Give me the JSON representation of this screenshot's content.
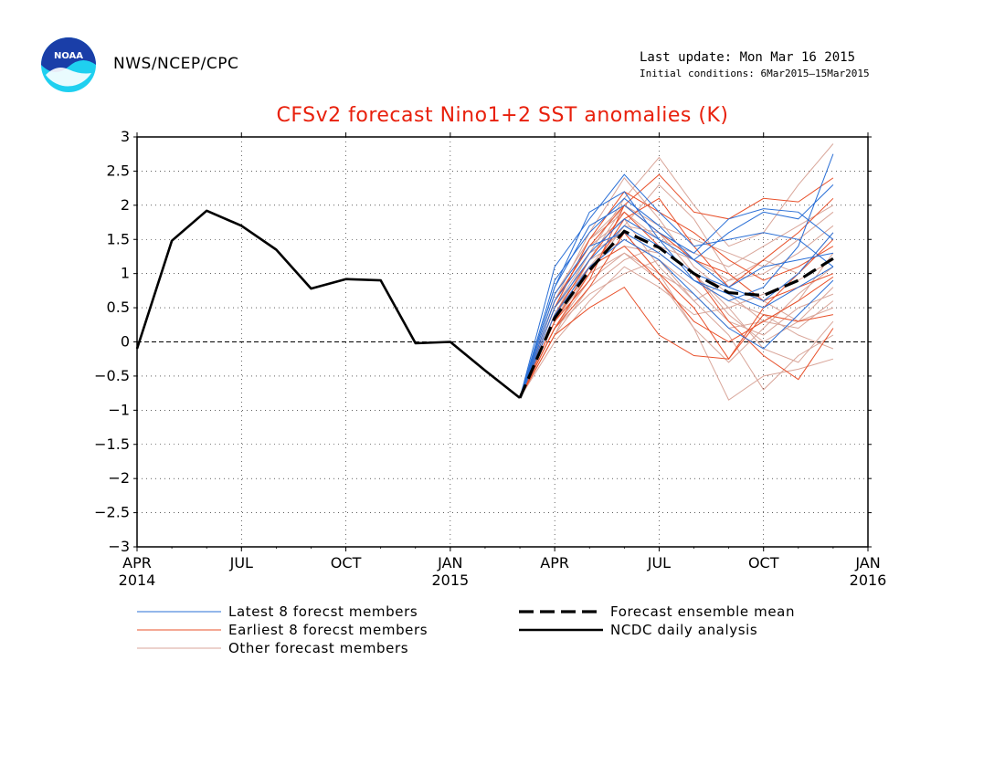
{
  "header": {
    "org": "NWS/NCEP/CPC",
    "logo_text": "NOAA",
    "last_update": "Last update: Mon Mar 16 2015",
    "initial_conditions": "Initial conditions: 6Mar2015–15Mar2015"
  },
  "colors": {
    "title": "#e8200c",
    "latest": "#2a6fd6",
    "earliest": "#e8502a",
    "other": "#d9a69a",
    "analysis": "#000000",
    "ensemble_mean": "#000000"
  },
  "chart_data": {
    "type": "line",
    "title": "CFSv2 forecast Nino1+2 SST anomalies (K)",
    "ylim": [
      -3,
      3
    ],
    "yticks": [
      3,
      2.5,
      2,
      1.5,
      1,
      0.5,
      0,
      -0.5,
      -1,
      -1.5,
      -2,
      -2.5,
      -3
    ],
    "ytick_labels": [
      "3",
      "2.5",
      "2",
      "1.5",
      "1",
      "0.5",
      "0",
      "−0.5",
      "−1",
      "−1.5",
      "−2",
      "−2.5",
      "−3"
    ],
    "xlim": [
      "2014-04",
      "2016-01"
    ],
    "xticks": [
      {
        "x": "2014-04",
        "label": "APR",
        "year": "2014"
      },
      {
        "x": "2014-07",
        "label": "JUL",
        "year": ""
      },
      {
        "x": "2014-10",
        "label": "OCT",
        "year": ""
      },
      {
        "x": "2015-01",
        "label": "JAN",
        "year": "2015"
      },
      {
        "x": "2015-04",
        "label": "APR",
        "year": ""
      },
      {
        "x": "2015-07",
        "label": "JUL",
        "year": ""
      },
      {
        "x": "2015-10",
        "label": "OCT",
        "year": ""
      },
      {
        "x": "2016-01",
        "label": "JAN",
        "year": "2016"
      }
    ],
    "grid": true,
    "zero_line": true,
    "legend": [
      {
        "label": "Latest 8 forecst members",
        "style": "latest"
      },
      {
        "label": "Earliest 8 forecst members",
        "style": "earliest"
      },
      {
        "label": "Other forecast members",
        "style": "other"
      },
      {
        "label": "Forecast ensemble mean",
        "style": "mean"
      },
      {
        "label": "NCDC daily analysis",
        "style": "analysis"
      }
    ],
    "analysis": {
      "x": [
        "2014-04",
        "2014-05",
        "2014-06",
        "2014-07",
        "2014-08",
        "2014-09",
        "2014-10",
        "2014-11",
        "2014-12",
        "2015-01",
        "2015-02",
        "2015-03"
      ],
      "y": [
        -0.1,
        1.48,
        1.92,
        1.7,
        1.35,
        0.78,
        0.92,
        0.9,
        -0.02,
        0.0,
        -0.42,
        -0.82
      ]
    },
    "ensemble_mean": {
      "x": [
        "2015-03",
        "2015-04",
        "2015-05",
        "2015-06",
        "2015-07",
        "2015-08",
        "2015-09",
        "2015-10",
        "2015-11",
        "2015-12"
      ],
      "y": [
        -0.82,
        0.35,
        1.05,
        1.62,
        1.38,
        1.0,
        0.72,
        0.68,
        0.9,
        1.22
      ]
    },
    "forecast_x": [
      "2015-03",
      "2015-04",
      "2015-05",
      "2015-06",
      "2015-07",
      "2015-08",
      "2015-09",
      "2015-10",
      "2015-11",
      "2015-12"
    ],
    "latest_members": [
      [
        -0.82,
        1.1,
        1.8,
        2.45,
        1.9,
        1.4,
        1.5,
        1.6,
        1.5,
        1.1
      ],
      [
        -0.82,
        0.9,
        1.6,
        2.1,
        1.7,
        1.2,
        0.8,
        1.1,
        1.2,
        1.3
      ],
      [
        -0.82,
        0.6,
        1.3,
        1.8,
        1.5,
        0.9,
        0.7,
        0.5,
        0.8,
        1.1
      ],
      [
        -0.82,
        0.8,
        1.7,
        2.0,
        1.6,
        1.3,
        1.8,
        1.95,
        1.9,
        1.5
      ],
      [
        -0.82,
        0.4,
        1.1,
        1.5,
        1.2,
        0.7,
        0.2,
        -0.1,
        0.4,
        0.9
      ],
      [
        -0.82,
        0.7,
        1.4,
        1.6,
        1.3,
        0.9,
        0.6,
        0.8,
        1.4,
        2.75
      ],
      [
        -0.82,
        0.5,
        1.2,
        1.7,
        1.4,
        1.0,
        0.8,
        0.6,
        1.0,
        1.6
      ],
      [
        -0.82,
        0.8,
        1.9,
        2.2,
        1.5,
        1.2,
        1.6,
        1.9,
        1.8,
        2.3
      ]
    ],
    "earliest_members": [
      [
        -0.82,
        0.3,
        0.9,
        2.0,
        2.45,
        1.9,
        1.8,
        2.1,
        2.05,
        2.4
      ],
      [
        -0.82,
        0.1,
        0.5,
        0.8,
        0.1,
        -0.2,
        -0.25,
        0.4,
        0.3,
        0.4
      ],
      [
        -0.82,
        0.4,
        1.2,
        1.9,
        1.4,
        1.0,
        0.3,
        -0.2,
        -0.55,
        0.2
      ],
      [
        -0.82,
        0.2,
        0.8,
        1.6,
        1.0,
        0.5,
        -0.25,
        0.5,
        1.0,
        1.5
      ],
      [
        -0.82,
        0.6,
        1.4,
        2.0,
        1.6,
        1.2,
        1.0,
        0.6,
        0.8,
        1.0
      ],
      [
        -0.82,
        0.2,
        1.0,
        1.8,
        2.1,
        1.4,
        0.8,
        1.2,
        1.6,
        2.1
      ],
      [
        -0.82,
        0.3,
        1.1,
        1.4,
        0.9,
        0.3,
        0.0,
        0.3,
        0.6,
        0.95
      ],
      [
        -0.82,
        0.5,
        1.5,
        2.2,
        1.9,
        1.6,
        1.2,
        0.9,
        1.1,
        1.4
      ]
    ],
    "other_members": [
      [
        -0.82,
        0.5,
        1.3,
        2.1,
        2.7,
        2.0,
        1.4,
        1.6,
        2.3,
        2.9
      ],
      [
        -0.82,
        0.2,
        0.9,
        1.3,
        1.0,
        0.2,
        -0.85,
        -0.5,
        -0.4,
        -0.25
      ],
      [
        -0.82,
        0.4,
        1.2,
        1.5,
        1.2,
        0.6,
        0.1,
        -0.7,
        -0.2,
        0.1
      ],
      [
        -0.82,
        0.6,
        1.6,
        2.4,
        1.8,
        1.1,
        0.7,
        0.3,
        0.2,
        0.6
      ],
      [
        -0.82,
        0.1,
        0.8,
        1.2,
        1.4,
        1.2,
        0.9,
        1.0,
        1.3,
        1.7
      ],
      [
        -0.82,
        0.3,
        1.0,
        1.7,
        1.6,
        1.0,
        0.4,
        0.0,
        0.3,
        0.8
      ],
      [
        -0.82,
        0.7,
        1.5,
        1.9,
        1.5,
        1.3,
        1.1,
        1.4,
        1.7,
        2.0
      ],
      [
        -0.82,
        0.0,
        0.6,
        1.1,
        0.8,
        0.4,
        0.5,
        0.7,
        0.9,
        1.2
      ],
      [
        -0.82,
        0.4,
        1.3,
        1.6,
        1.0,
        0.7,
        0.2,
        0.3,
        0.6,
        1.3
      ],
      [
        -0.82,
        0.5,
        1.1,
        1.4,
        1.3,
        0.9,
        0.6,
        0.4,
        0.1,
        -0.1
      ],
      [
        -0.82,
        0.3,
        1.2,
        2.0,
        1.7,
        1.5,
        1.3,
        1.1,
        1.5,
        1.9
      ],
      [
        -0.82,
        0.2,
        0.7,
        1.0,
        1.2,
        0.8,
        0.3,
        0.1,
        0.5,
        0.7
      ],
      [
        -0.82,
        0.6,
        1.4,
        1.8,
        1.1,
        0.6,
        0.9,
        1.2,
        1.0,
        1.6
      ],
      [
        -0.82,
        0.4,
        1.0,
        1.3,
        0.9,
        0.2,
        -0.3,
        0.2,
        0.7,
        1.1
      ],
      [
        -0.82,
        0.1,
        1.1,
        1.7,
        2.3,
        1.8,
        1.0,
        0.6,
        0.3,
        0.5
      ],
      [
        -0.82,
        0.5,
        1.5,
        2.0,
        1.6,
        1.0,
        0.5,
        -0.1,
        -0.3,
        0.3
      ]
    ]
  }
}
